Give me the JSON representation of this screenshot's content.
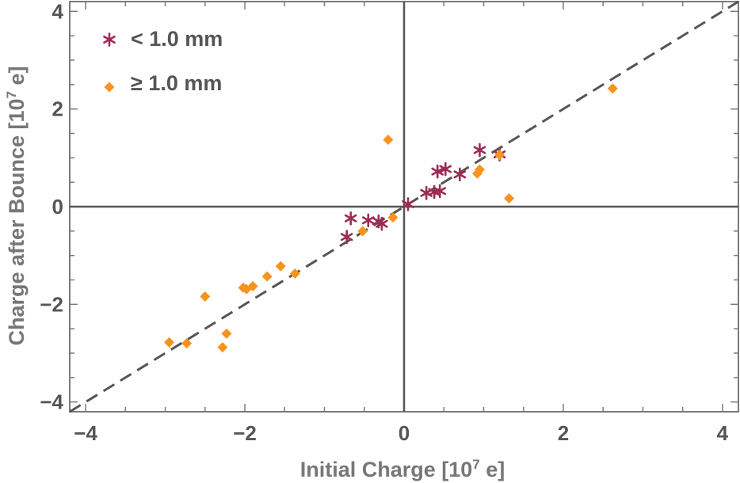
{
  "chart_data": {
    "type": "scatter",
    "title": "",
    "xlabel": {
      "main": "Initial Charge [10",
      "sup": "7",
      "tail": " e]"
    },
    "ylabel": {
      "main": "Charge after Bounce [10",
      "sup": "7",
      "tail": " e]"
    },
    "xlim": [
      -4.2,
      4.2
    ],
    "ylim": [
      -4.2,
      4.2
    ],
    "xticks": [
      -4,
      -2,
      0,
      2,
      4
    ],
    "yticks": [
      -4,
      -2,
      0,
      2,
      4
    ],
    "xtick_labels": [
      "−4",
      "−2",
      "0",
      "2",
      "4"
    ],
    "ytick_labels": [
      "−4",
      "−2",
      "0",
      "2",
      "4"
    ],
    "legend_position": "top-left",
    "fit_line": {
      "slope": 1.0,
      "intercept": 0.0,
      "style": "dashed",
      "color": "#555555"
    },
    "series": [
      {
        "name": "< 1.0 mm",
        "marker": "asterisk",
        "color": "#9b2c55",
        "x": [
          -0.72,
          -0.67,
          -0.45,
          -0.32,
          -0.28,
          0.05,
          0.28,
          0.38,
          0.42,
          0.45,
          0.52,
          0.7,
          0.95,
          1.2
        ],
        "y": [
          -0.62,
          -0.24,
          -0.28,
          -0.3,
          -0.35,
          0.05,
          0.28,
          0.3,
          0.72,
          0.32,
          0.77,
          0.66,
          1.16,
          1.07
        ]
      },
      {
        "name": "≥ 1.0 mm",
        "marker": "diamond",
        "color": "#f7931e",
        "x": [
          -2.95,
          -2.73,
          -2.5,
          -2.28,
          -2.23,
          -2.02,
          -1.98,
          -1.9,
          -1.72,
          -1.55,
          -1.37,
          -0.52,
          -0.2,
          -0.14,
          0.92,
          0.95,
          1.2,
          1.32,
          2.62
        ],
        "y": [
          -2.78,
          -2.8,
          -1.84,
          -2.88,
          -2.6,
          -1.66,
          -1.69,
          -1.63,
          -1.43,
          -1.22,
          -1.37,
          -0.5,
          1.37,
          -0.22,
          0.68,
          0.76,
          1.06,
          0.17,
          2.42
        ]
      }
    ]
  },
  "colors": {
    "axis": "#555555",
    "frame": "#7a7a7a",
    "fit": "#555555"
  }
}
